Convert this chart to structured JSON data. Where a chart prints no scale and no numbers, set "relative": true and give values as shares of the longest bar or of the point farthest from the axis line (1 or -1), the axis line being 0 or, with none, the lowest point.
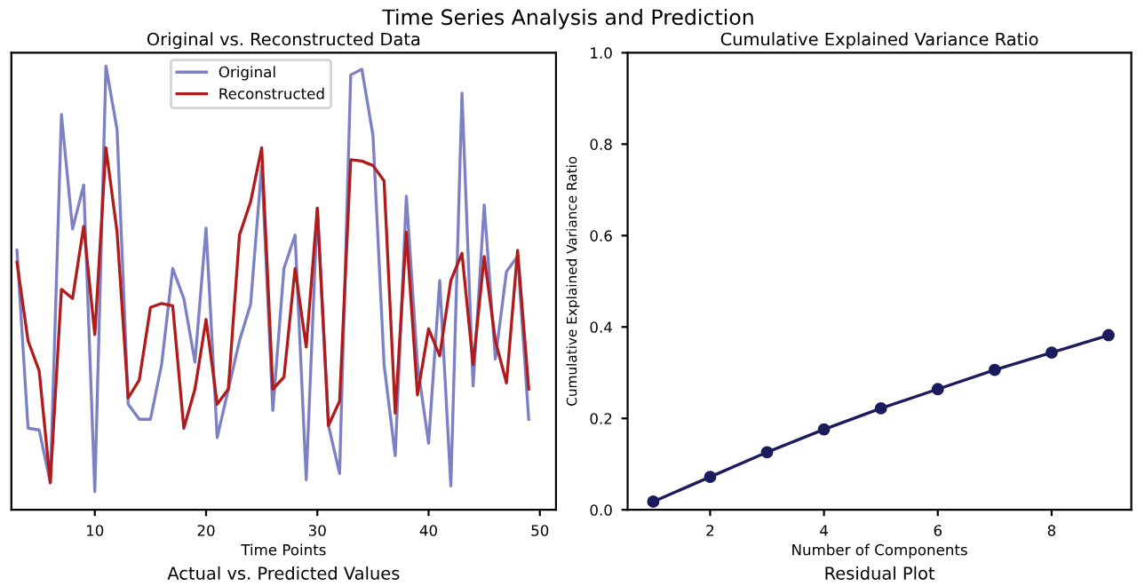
{
  "chart_data": [
    {
      "type": "line",
      "title": "Original vs. Reconstructed Data",
      "xlabel": "Time Points",
      "relative": true,
      "x": [
        3,
        4,
        5,
        6,
        7,
        8,
        9,
        10,
        11,
        12,
        13,
        14,
        15,
        16,
        17,
        18,
        19,
        20,
        21,
        22,
        23,
        24,
        25,
        26,
        27,
        28,
        29,
        30,
        31,
        32,
        33,
        34,
        35,
        36,
        37,
        38,
        39,
        40,
        41,
        42,
        43,
        44,
        45,
        46,
        47,
        48,
        49
      ],
      "xlim": [
        2.5,
        51.45
      ],
      "xticks": [
        10,
        20,
        30,
        40,
        50
      ],
      "legend": "top",
      "grid": false,
      "marker": "none",
      "line_style": "solid",
      "annotations": [
        "Time Series Analysis and Prediction",
        "Actual vs. Predicted Values"
      ],
      "series": [
        {
          "name": "Original",
          "color": "#7c80c4",
          "values": [
            0.585,
            0.184,
            0.18,
            0.061,
            0.891,
            0.633,
            0.732,
            0.041,
            1.0,
            0.857,
            0.238,
            0.204,
            0.204,
            0.327,
            0.544,
            0.476,
            0.333,
            0.635,
            0.163,
            0.272,
            0.381,
            0.463,
            0.776,
            0.224,
            0.544,
            0.619,
            0.068,
            0.68,
            0.19,
            0.082,
            0.98,
            0.993,
            0.844,
            0.327,
            0.122,
            0.707,
            0.327,
            0.15,
            0.517,
            0.054,
            0.939,
            0.279,
            0.687,
            0.34,
            0.537,
            0.571,
            0.204
          ]
        },
        {
          "name": "Reconstructed",
          "color": "#b01c1c",
          "values": [
            0.558,
            0.381,
            0.313,
            0.061,
            0.497,
            0.476,
            0.639,
            0.395,
            0.816,
            0.626,
            0.252,
            0.293,
            0.456,
            0.465,
            0.46,
            0.184,
            0.272,
            0.429,
            0.238,
            0.272,
            0.619,
            0.694,
            0.816,
            0.272,
            0.299,
            0.544,
            0.367,
            0.68,
            0.19,
            0.245,
            0.789,
            0.786,
            0.776,
            0.741,
            0.218,
            0.626,
            0.259,
            0.408,
            0.347,
            0.517,
            0.578,
            0.327,
            0.571,
            0.381,
            0.286,
            0.585,
            0.272
          ]
        }
      ]
    },
    {
      "type": "line",
      "title": "Cumulative Explained Variance Ratio",
      "xlabel": "Number of Components",
      "ylabel": "Cumulative Explained Variance Ratio",
      "x": [
        1,
        2,
        3,
        4,
        5,
        6,
        7,
        8,
        9
      ],
      "xlim": [
        0.55,
        9.4
      ],
      "xticks": [
        2,
        4,
        6,
        8
      ],
      "ylim": [
        0,
        1
      ],
      "yticks": [
        {
          "value": 0,
          "label": "0.0"
        },
        0.2,
        0.4,
        0.6,
        0.8,
        {
          "value": 1,
          "label": "1.0"
        }
      ],
      "grid": false,
      "marker": "circle",
      "line_style": "solid",
      "annotations": [
        "Residual Plot"
      ],
      "series": [
        {
          "color": "#1b1b5e",
          "values": [
            0.018,
            0.072,
            0.126,
            0.176,
            0.222,
            0.264,
            0.306,
            0.344,
            0.382
          ]
        }
      ]
    }
  ]
}
